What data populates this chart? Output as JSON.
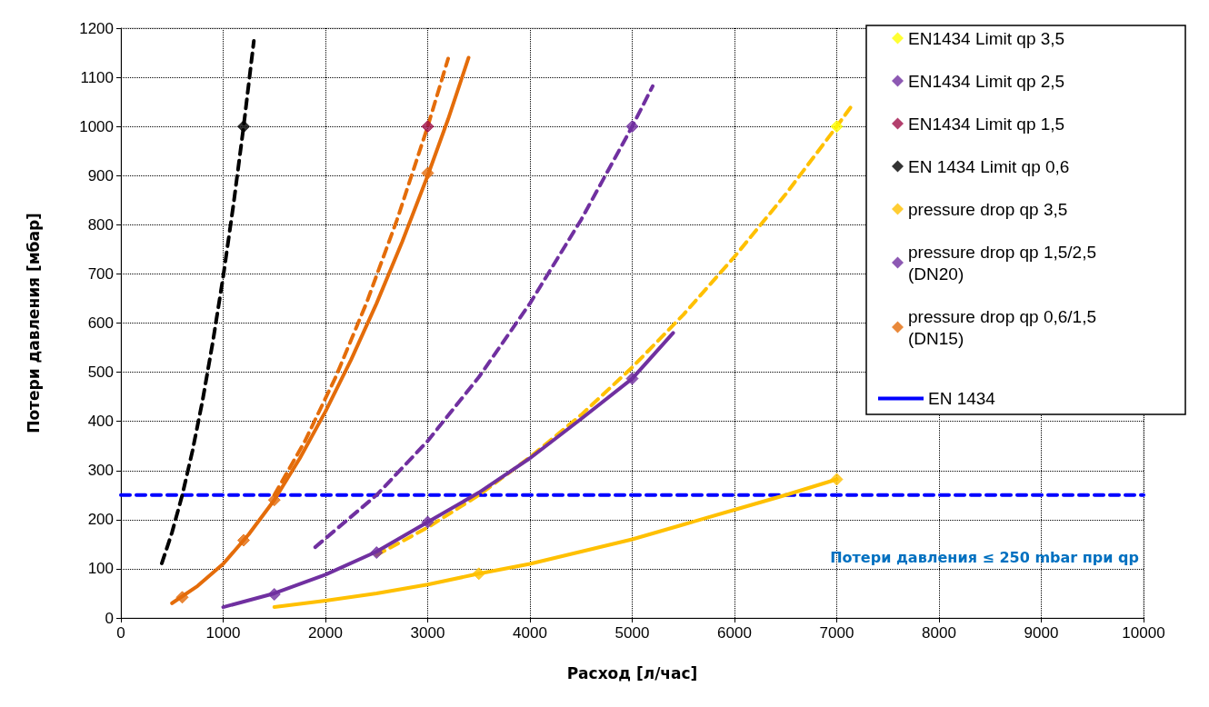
{
  "chart_data": {
    "type": "line",
    "xlabel": "Расход [л/час]",
    "ylabel": "Потери давления [мбар]",
    "xlim": [
      0,
      10000
    ],
    "xticks": [
      0,
      1000,
      2000,
      3000,
      4000,
      5000,
      6000,
      7000,
      8000,
      9000,
      10000
    ],
    "ylim": [
      0,
      1200
    ],
    "yticks": [
      0,
      100,
      200,
      300,
      400,
      500,
      600,
      700,
      800,
      900,
      1000,
      1100,
      1200
    ],
    "grid": true,
    "legend": "top right",
    "annotations": [
      "Потери давления ≤ 250 mbar при qp"
    ],
    "series": [
      {
        "name": "EN1434 Limit qp 3,5",
        "type": "scatter",
        "marker": "diamond",
        "color": "#ffff00",
        "x": [
          7000
        ],
        "values": [
          1000
        ]
      },
      {
        "name": "EN1434 Limit qp 2,5",
        "type": "scatter",
        "marker": "diamond",
        "color": "#7030a0",
        "x": [
          5000
        ],
        "values": [
          1000
        ]
      },
      {
        "name": "EN1434 Limit qp 1,5",
        "type": "scatter",
        "marker": "diamond",
        "color": "#a0104a",
        "x": [
          3000
        ],
        "values": [
          1000
        ]
      },
      {
        "name": "EN 1434 Limit qp 0,6",
        "type": "scatter",
        "marker": "diamond",
        "color": "#000000",
        "x": [
          1200
        ],
        "values": [
          1000
        ]
      },
      {
        "name": "pressure drop qp 3,5",
        "type": "scatter",
        "marker": "diamond",
        "color": "#ffc000",
        "x": [
          3500,
          7000
        ],
        "values": [
          90,
          282
        ]
      },
      {
        "name": "pressure drop qp 1,5/2,5 (DN20)",
        "type": "scatter",
        "marker": "diamond",
        "color": "#7030a0",
        "x": [
          1500,
          2500,
          3000,
          5000
        ],
        "values": [
          48,
          133,
          195,
          487
        ]
      },
      {
        "name": "pressure drop qp 0,6/1,5 (DN15)",
        "type": "scatter",
        "marker": "diamond",
        "color": "#e46c0a",
        "x": [
          600,
          1200,
          1500,
          3000
        ],
        "values": [
          42,
          158,
          240,
          905
        ]
      },
      {
        "name": "EN 1434",
        "marker": "none",
        "line_style": "dashed",
        "color": "#0000ff",
        "x": [
          0,
          10000
        ],
        "values": [
          250,
          250
        ]
      },
      {
        "marker": "none",
        "line_style": "dashed",
        "color": "#000000",
        "x": [
          400,
          500,
          600,
          700,
          800,
          900,
          1000,
          1100,
          1200,
          1300
        ],
        "values": [
          111,
          174,
          250,
          340,
          444,
          563,
          694,
          840,
          1000,
          1174
        ]
      },
      {
        "marker": "none",
        "line_style": "dashed",
        "color": "#e46c0a",
        "x": [
          1500,
          1800,
          2100,
          2400,
          2700,
          3000,
          3200
        ],
        "values": [
          250,
          360,
          490,
          640,
          810,
          1000,
          1138
        ]
      },
      {
        "marker": "none",
        "line_style": "dashed",
        "color": "#7030a0",
        "x": [
          1900,
          2500,
          3000,
          3500,
          4000,
          4500,
          5000,
          5200
        ],
        "values": [
          144,
          250,
          360,
          490,
          640,
          810,
          1000,
          1082
        ]
      },
      {
        "marker": "none",
        "line_style": "dashed",
        "color": "#ffc000",
        "x": [
          2500,
          3000,
          3500,
          4000,
          4500,
          5000,
          5500,
          6000,
          6500,
          7000,
          7150
        ],
        "values": [
          128,
          184,
          250,
          327,
          413,
          510,
          617,
          735,
          862,
          1000,
          1043
        ]
      },
      {
        "marker": "none",
        "line_style": "solid",
        "color": "#e46c0a",
        "x": [
          500,
          750,
          1000,
          1250,
          1500,
          1750,
          2000,
          2250,
          2500,
          2750,
          3000,
          3200,
          3400
        ],
        "values": [
          30,
          65,
          110,
          170,
          240,
          325,
          420,
          525,
          640,
          765,
          900,
          1015,
          1140
        ]
      },
      {
        "marker": "none",
        "line_style": "solid",
        "color": "#7030a0",
        "x": [
          1000,
          1500,
          2000,
          2500,
          3000,
          3500,
          4000,
          4500,
          5000,
          5400
        ],
        "values": [
          22,
          50,
          88,
          135,
          195,
          255,
          325,
          405,
          487,
          580
        ]
      },
      {
        "marker": "none",
        "line_style": "solid",
        "color": "#ffc000",
        "x": [
          1500,
          2000,
          2500,
          3000,
          3500,
          4000,
          4500,
          5000,
          5500,
          6000,
          6500,
          7000
        ],
        "values": [
          22,
          35,
          50,
          68,
          90,
          110,
          135,
          160,
          190,
          220,
          250,
          282
        ]
      }
    ]
  }
}
